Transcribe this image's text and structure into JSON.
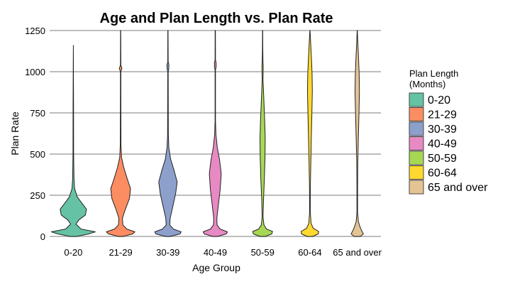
{
  "chart_data": {
    "type": "violin",
    "title": "Age and Plan Length vs. Plan Rate",
    "xlabel": "Age Group",
    "ylabel": "Plan Rate",
    "ylim": [
      0,
      1250
    ],
    "yticks": [
      0,
      250,
      500,
      750,
      1000,
      1250
    ],
    "grid": true,
    "legend": {
      "title": [
        "Plan Length",
        "(Months)"
      ],
      "position": "right"
    },
    "categories": [
      "0-20",
      "21-29",
      "30-39",
      "40-49",
      "50-59",
      "60-64",
      "65 and over"
    ],
    "series": [
      {
        "name": "0-20",
        "color": "#66c2a5",
        "max": 1160,
        "density": [
          [
            0,
            0.15
          ],
          [
            15,
            0.7
          ],
          [
            28,
            1.0
          ],
          [
            45,
            0.35
          ],
          [
            75,
            0.12
          ],
          [
            100,
            0.25
          ],
          [
            130,
            0.55
          ],
          [
            165,
            0.6
          ],
          [
            200,
            0.4
          ],
          [
            240,
            0.18
          ],
          [
            290,
            0.06
          ],
          [
            350,
            0.03
          ],
          [
            500,
            0.015
          ],
          [
            800,
            0.01
          ],
          [
            1160,
            0
          ]
        ]
      },
      {
        "name": "21-29",
        "color": "#fc8d62",
        "max": 1250,
        "density": [
          [
            0,
            0.1
          ],
          [
            15,
            0.55
          ],
          [
            28,
            0.65
          ],
          [
            45,
            0.28
          ],
          [
            70,
            0.1
          ],
          [
            110,
            0.08
          ],
          [
            160,
            0.2
          ],
          [
            230,
            0.4
          ],
          [
            290,
            0.45
          ],
          [
            350,
            0.3
          ],
          [
            420,
            0.14
          ],
          [
            480,
            0.04
          ],
          [
            560,
            0.015
          ],
          [
            900,
            0.01
          ],
          [
            1000,
            0.01
          ],
          [
            1020,
            0.06
          ],
          [
            1040,
            0.01
          ],
          [
            1250,
            0.005
          ]
        ]
      },
      {
        "name": "30-39",
        "color": "#8da0cb",
        "max": 1250,
        "density": [
          [
            0,
            0.1
          ],
          [
            15,
            0.55
          ],
          [
            28,
            0.6
          ],
          [
            45,
            0.25
          ],
          [
            70,
            0.08
          ],
          [
            110,
            0.1
          ],
          [
            170,
            0.2
          ],
          [
            260,
            0.35
          ],
          [
            330,
            0.42
          ],
          [
            400,
            0.28
          ],
          [
            470,
            0.12
          ],
          [
            540,
            0.04
          ],
          [
            620,
            0.015
          ],
          [
            1000,
            0.01
          ],
          [
            1020,
            0.04
          ],
          [
            1045,
            0.04
          ],
          [
            1060,
            0.01
          ],
          [
            1250,
            0.005
          ]
        ]
      },
      {
        "name": "40-49",
        "color": "#e78ac3",
        "max": 1250,
        "density": [
          [
            0,
            0.1
          ],
          [
            15,
            0.5
          ],
          [
            28,
            0.55
          ],
          [
            45,
            0.22
          ],
          [
            70,
            0.08
          ],
          [
            110,
            0.07
          ],
          [
            180,
            0.13
          ],
          [
            280,
            0.22
          ],
          [
            380,
            0.27
          ],
          [
            460,
            0.2
          ],
          [
            540,
            0.09
          ],
          [
            620,
            0.03
          ],
          [
            700,
            0.01
          ],
          [
            1010,
            0.01
          ],
          [
            1030,
            0.04
          ],
          [
            1055,
            0.04
          ],
          [
            1070,
            0.01
          ],
          [
            1250,
            0.005
          ]
        ]
      },
      {
        "name": "50-59",
        "color": "#a6d854",
        "max": 1250,
        "density": [
          [
            0,
            0.12
          ],
          [
            15,
            0.42
          ],
          [
            30,
            0.45
          ],
          [
            45,
            0.18
          ],
          [
            70,
            0.06
          ],
          [
            120,
            0.02
          ],
          [
            220,
            0.04
          ],
          [
            350,
            0.08
          ],
          [
            480,
            0.11
          ],
          [
            600,
            0.12
          ],
          [
            720,
            0.09
          ],
          [
            850,
            0.05
          ],
          [
            950,
            0.02
          ],
          [
            1030,
            0.03
          ],
          [
            1070,
            0.015
          ],
          [
            1150,
            0.008
          ],
          [
            1250,
            0.005
          ]
        ]
      },
      {
        "name": "60-64",
        "color": "#ffd92f",
        "max": 1250,
        "density": [
          [
            0,
            0.12
          ],
          [
            15,
            0.38
          ],
          [
            30,
            0.4
          ],
          [
            50,
            0.15
          ],
          [
            80,
            0.05
          ],
          [
            150,
            0.015
          ],
          [
            300,
            0.02
          ],
          [
            450,
            0.04
          ],
          [
            600,
            0.065
          ],
          [
            750,
            0.09
          ],
          [
            880,
            0.11
          ],
          [
            980,
            0.1
          ],
          [
            1080,
            0.07
          ],
          [
            1180,
            0.03
          ],
          [
            1250,
            0.005
          ]
        ]
      },
      {
        "name": "65 and over",
        "color": "#e5c494",
        "max": 1250,
        "density": [
          [
            0,
            0.14
          ],
          [
            15,
            0.28
          ],
          [
            35,
            0.2
          ],
          [
            60,
            0.12
          ],
          [
            90,
            0.05
          ],
          [
            150,
            0.015
          ],
          [
            300,
            0.015
          ],
          [
            450,
            0.025
          ],
          [
            600,
            0.05
          ],
          [
            750,
            0.08
          ],
          [
            880,
            0.1
          ],
          [
            980,
            0.09
          ],
          [
            1080,
            0.06
          ],
          [
            1180,
            0.025
          ],
          [
            1250,
            0.005
          ]
        ]
      }
    ]
  }
}
